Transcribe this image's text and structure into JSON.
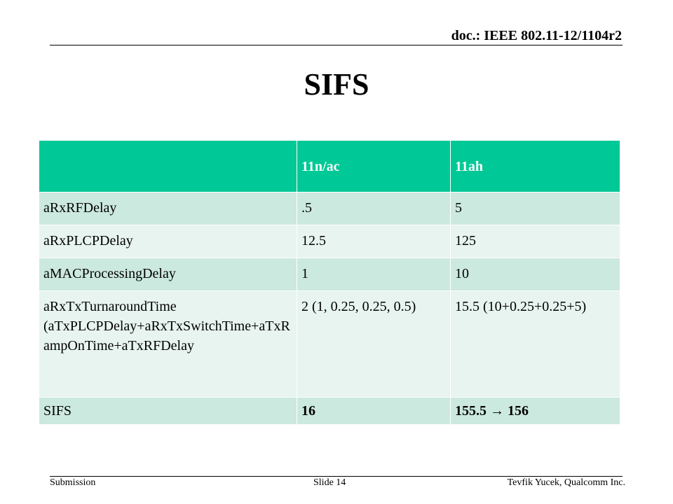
{
  "header": {
    "doc_id": "doc.: IEEE 802.11-12/1104r2"
  },
  "slide": {
    "title": "SIFS"
  },
  "table": {
    "columns": [
      "",
      "11n/ac",
      "11ah"
    ],
    "rows": [
      {
        "label": "aRxRFDelay",
        "n_ac": ".5",
        "ah": "5"
      },
      {
        "label": "aRxPLCPDelay",
        "n_ac": "12.5",
        "ah": "125"
      },
      {
        "label": "aMACProcessingDelay",
        "n_ac": "1",
        "ah": "10"
      },
      {
        "label": "aRxTxTurnaroundTime (aTxPLCPDelay+aRxTxSwitchTime+aTxRampOnTime+aTxRFDelay",
        "n_ac": "2 (1, 0.25, 0.25, 0.5)",
        "ah": "15.5 (10+0.25+0.25+5)"
      },
      {
        "label": "SIFS",
        "n_ac": "16",
        "ah": "155.5 → 156"
      }
    ]
  },
  "colors": {
    "header_fill": "#00c896",
    "band_dark": "#cce9df",
    "band_light": "#e7f4ef"
  },
  "footer": {
    "left": "Submission",
    "center": "Slide 14",
    "right": "Tevfik Yucek, Qualcomm Inc."
  }
}
